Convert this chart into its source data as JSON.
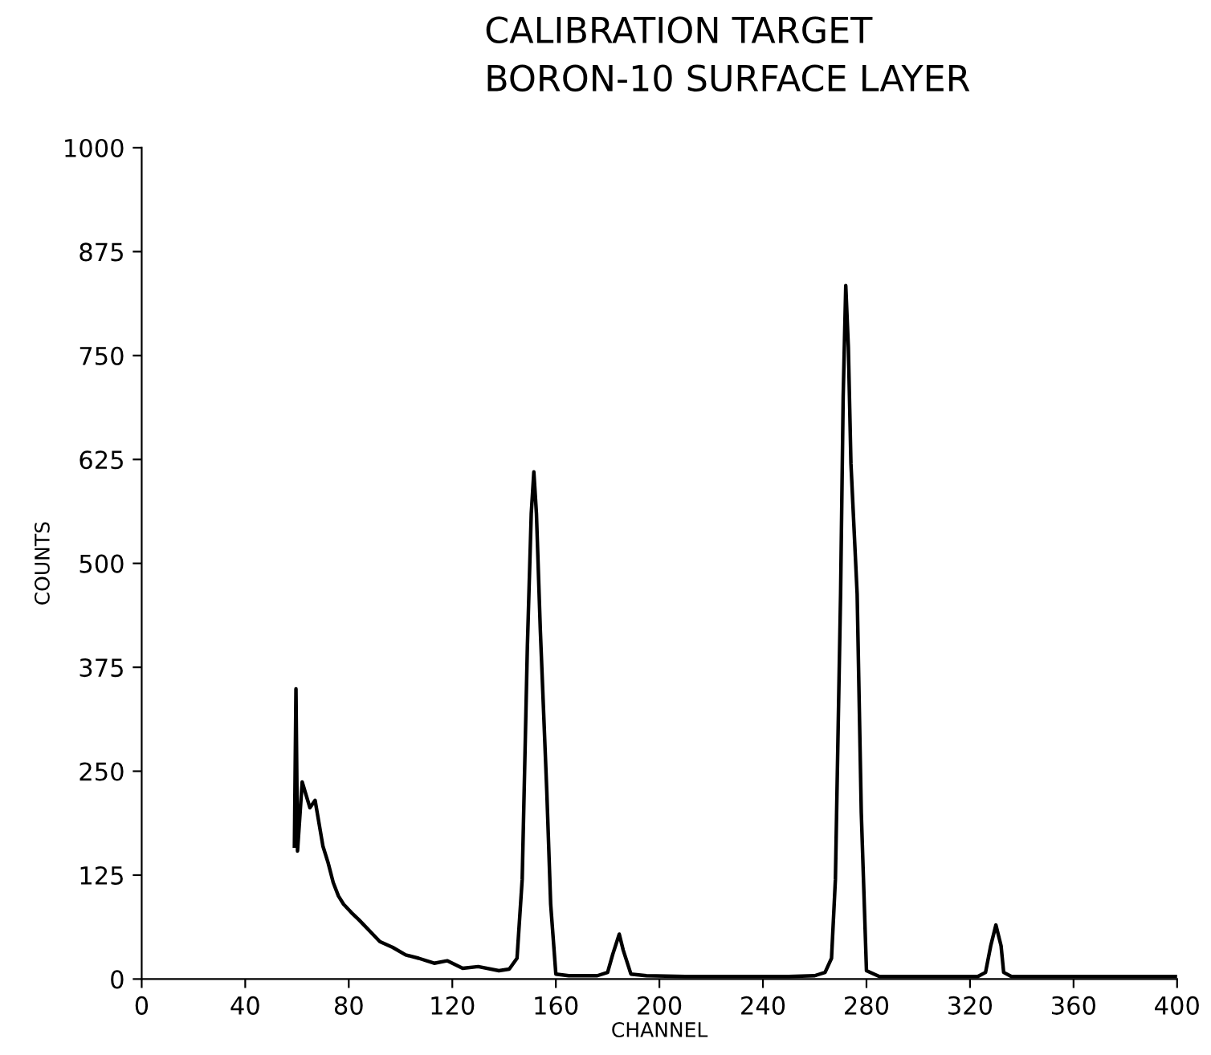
{
  "chart_data": {
    "type": "line",
    "title": "CALIBRATION TARGET\nBORON-10 SURFACE LAYER",
    "xlabel": "CHANNEL",
    "ylabel": "COUNTS",
    "xlim": [
      0,
      400
    ],
    "xticks": [
      0,
      40,
      80,
      120,
      160,
      200,
      240,
      280,
      320,
      360,
      400
    ],
    "ylim": [
      0,
      1000
    ],
    "yticks": [
      0,
      125,
      250,
      375,
      500,
      625,
      750,
      875,
      1000
    ],
    "grid": false,
    "legend": false,
    "series": [
      {
        "color": "#000000",
        "x": [
          59,
          59.6,
          60.2,
          62,
          65,
          67,
          70,
          72,
          74,
          76,
          78,
          81,
          84,
          88,
          92,
          97,
          102,
          107,
          113,
          118,
          124,
          130,
          138,
          142,
          145,
          147,
          149,
          150.5,
          151.5,
          152.5,
          154,
          156.5,
          158,
          160,
          165,
          170,
          176,
          180,
          182,
          184.5,
          186,
          189,
          195,
          210,
          230,
          250,
          260,
          264,
          266.5,
          268,
          270,
          271,
          272,
          273,
          274,
          276.4,
          278,
          280,
          285,
          300,
          315,
          323,
          326,
          328,
          330,
          332,
          333,
          336,
          350,
          380,
          400
        ],
        "values": [
          160,
          349,
          154,
          237,
          206,
          215,
          160,
          140,
          116,
          100,
          90,
          80,
          71,
          58,
          45,
          38,
          29,
          25,
          19,
          22,
          13,
          15,
          10,
          12,
          25,
          120,
          400,
          560,
          610,
          560,
          420,
          226,
          90,
          6,
          4,
          4,
          4,
          8,
          30,
          54,
          35,
          6,
          4,
          3,
          3,
          3,
          4,
          8,
          25,
          120,
          463,
          700,
          834,
          760,
          620,
          463,
          200,
          10,
          3,
          3,
          3,
          3,
          8,
          40,
          65,
          40,
          8,
          3,
          3,
          3,
          3
        ]
      }
    ]
  }
}
